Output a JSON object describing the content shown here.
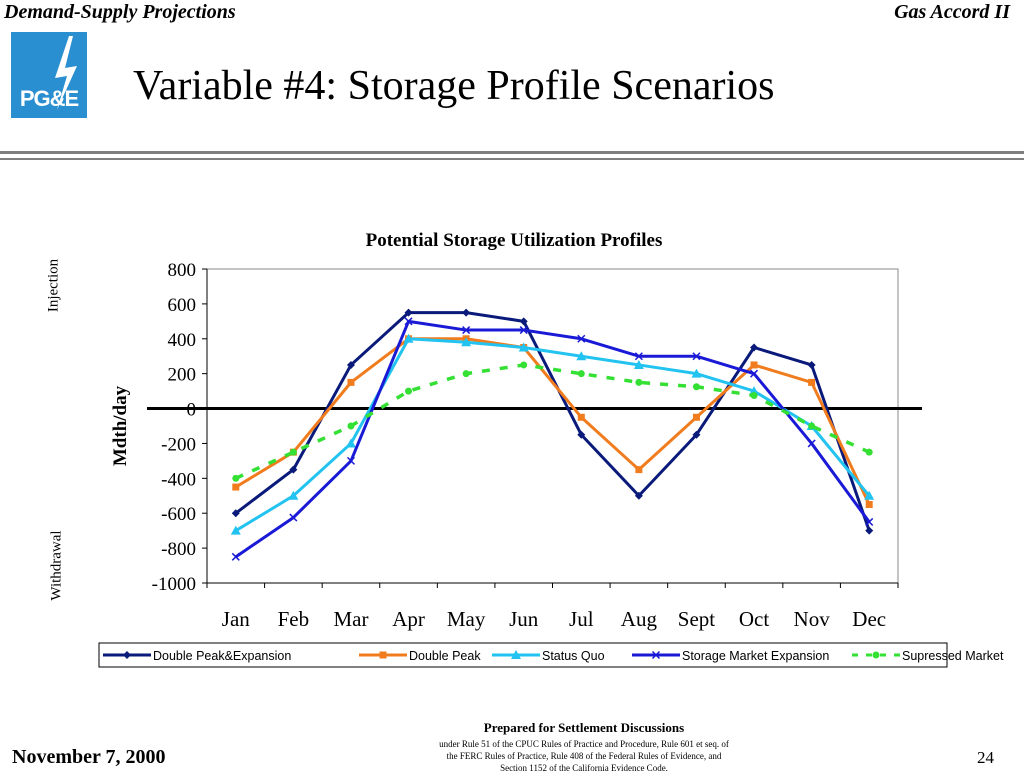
{
  "header": {
    "left": "Demand-Supply Projections",
    "right": "Gas Accord II"
  },
  "logo": {
    "text": "PG&E",
    "color": "#2a8fd0"
  },
  "slide_title": "Variable #4:  Storage Profile Scenarios",
  "side_labels": {
    "top": "Injection",
    "bottom": "Withdrawal"
  },
  "footer": {
    "date": "November 7, 2000",
    "page": "24",
    "heading": "Prepared for Settlement Discussions",
    "lines": [
      "under Rule 51 of the CPUC Rules of Practice and Procedure, Rule 601 et seq. of",
      "the FERC Rules of Practice, Rule 408 of the Federal Rules of Evidence, and",
      "Section 1152 of the California Evidence Code."
    ]
  },
  "chart_data": {
    "type": "line",
    "title": "Potential Storage Utilization Profiles",
    "ylabel": "Mdth/day",
    "xlabel": "",
    "ylim": [
      -1000,
      800
    ],
    "yticks": [
      800,
      600,
      400,
      200,
      0,
      -200,
      -400,
      -600,
      -800,
      -1000
    ],
    "categories": [
      "Jan",
      "Feb",
      "Mar",
      "Apr",
      "May",
      "Jun",
      "Jul",
      "Aug",
      "Sept",
      "Oct",
      "Nov",
      "Dec"
    ],
    "grid": false,
    "legend_position": "bottom",
    "series": [
      {
        "name": "Double Peak&Expansion",
        "color": "#0a1a7a",
        "marker": "diamond",
        "dash": "none",
        "values": [
          -600,
          -350,
          250,
          550,
          550,
          500,
          -150,
          -500,
          -150,
          350,
          250,
          -700
        ]
      },
      {
        "name": "Double Peak",
        "color": "#f07c1e",
        "marker": "square",
        "dash": "none",
        "values": [
          -450,
          -250,
          150,
          400,
          400,
          350,
          -50,
          -350,
          -50,
          250,
          150,
          -550
        ]
      },
      {
        "name": "Status Quo",
        "color": "#22c3f0",
        "marker": "triangle",
        "dash": "none",
        "values": [
          -700,
          -500,
          -200,
          400,
          380,
          350,
          300,
          250,
          200,
          100,
          -100,
          -500
        ]
      },
      {
        "name": "Storage Market Expansion",
        "color": "#1a1ad6",
        "marker": "x",
        "dash": "none",
        "values": [
          -850,
          -625,
          -300,
          500,
          450,
          450,
          400,
          300,
          300,
          200,
          -200,
          -650
        ]
      },
      {
        "name": "Supressed Market",
        "color": "#33e033",
        "marker": "circle",
        "dash": "dash",
        "values": [
          -400,
          -250,
          -100,
          100,
          200,
          250,
          200,
          150,
          125,
          75,
          -100,
          -250
        ]
      }
    ]
  }
}
